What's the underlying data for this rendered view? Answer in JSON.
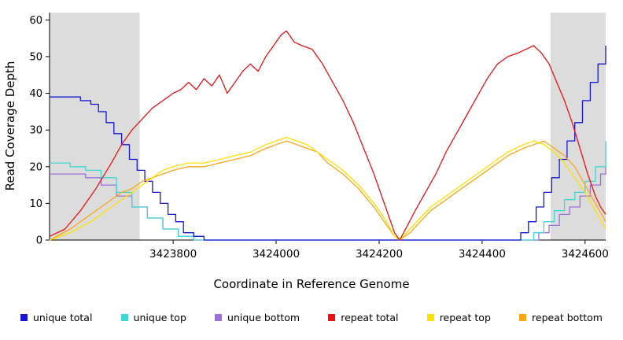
{
  "chart_data": {
    "type": "line",
    "title": "",
    "xlabel": "Coordinate in Reference Genome",
    "ylabel": "Read Coverage Depth",
    "xlim": [
      3423560,
      3424640
    ],
    "ylim": [
      0,
      62
    ],
    "xticks": [
      3423800,
      3424000,
      3424200,
      3424400,
      3424600
    ],
    "yticks": [
      0,
      10,
      20,
      30,
      40,
      50,
      60
    ],
    "grid": false,
    "legend_position": "bottom",
    "shaded_color": "#DCDCDC",
    "shaded_regions": [
      [
        3423560,
        3423735
      ],
      [
        3424533,
        3424640
      ]
    ],
    "series": [
      {
        "name": "unique total",
        "color": "#1515D6",
        "step": true,
        "x": [
          3423560,
          3423600,
          3423620,
          3423640,
          3423655,
          3423670,
          3423685,
          3423700,
          3423715,
          3423730,
          3423745,
          3423760,
          3423775,
          3423790,
          3423805,
          3423820,
          3423840,
          3423860,
          3424460,
          3424475,
          3424490,
          3424505,
          3424520,
          3424535,
          3424550,
          3424565,
          3424580,
          3424595,
          3424610,
          3424625,
          3424640
        ],
        "y": [
          39,
          39,
          38,
          37,
          35,
          32,
          29,
          26,
          22,
          19,
          16,
          13,
          10,
          7,
          5,
          2,
          1,
          0,
          0,
          2,
          5,
          9,
          13,
          17,
          22,
          27,
          32,
          38,
          43,
          48,
          53
        ]
      },
      {
        "name": "unique top",
        "color": "#3FD6D6",
        "step": true,
        "x": [
          3423560,
          3423600,
          3423630,
          3423660,
          3423690,
          3423720,
          3423750,
          3423780,
          3423810,
          3423840,
          3424480,
          3424500,
          3424520,
          3424540,
          3424560,
          3424580,
          3424600,
          3424620,
          3424640
        ],
        "y": [
          21,
          20,
          19,
          17,
          13,
          9,
          6,
          3,
          1,
          0,
          0,
          2,
          5,
          8,
          11,
          13,
          16,
          20,
          27
        ]
      },
      {
        "name": "unique bottom",
        "color": "#9B6FDB",
        "step": true,
        "x": [
          3423560,
          3423600,
          3423630,
          3423660,
          3423690,
          3423720,
          3423750,
          3423780,
          3423810,
          3423840,
          3424490,
          3424510,
          3424530,
          3424550,
          3424570,
          3424590,
          3424610,
          3424630,
          3424640
        ],
        "y": [
          18,
          18,
          17,
          15,
          12,
          9,
          6,
          3,
          1,
          0,
          0,
          2,
          4,
          7,
          9,
          12,
          15,
          18,
          20
        ]
      },
      {
        "name": "repeat total",
        "color": "#EE1111",
        "step": false,
        "x": [
          3423560,
          3423590,
          3423620,
          3423650,
          3423680,
          3423700,
          3423720,
          3423740,
          3423760,
          3423780,
          3423800,
          3423815,
          3423830,
          3423845,
          3423860,
          3423875,
          3423890,
          3423905,
          3423920,
          3423935,
          3423950,
          3423965,
          3423980,
          3423995,
          3424010,
          3424020,
          3424035,
          3424050,
          3424070,
          3424090,
          3424110,
          3424130,
          3424150,
          3424170,
          3424190,
          3424210,
          3424230,
          3424240,
          3424255,
          3424270,
          3424290,
          3424310,
          3424330,
          3424350,
          3424370,
          3424390,
          3424410,
          3424430,
          3424450,
          3424470,
          3424485,
          3424500,
          3424515,
          3424530,
          3424545,
          3424560,
          3424575,
          3424590,
          3424605,
          3424620,
          3424630,
          3424640
        ],
        "y": [
          1,
          3,
          8,
          14,
          21,
          26,
          30,
          33,
          36,
          38,
          40,
          41,
          43,
          41,
          44,
          42,
          45,
          40,
          43,
          46,
          48,
          46,
          50,
          53,
          56,
          57,
          54,
          53,
          52,
          48,
          43,
          38,
          32,
          25,
          18,
          10,
          2,
          0,
          4,
          8,
          13,
          18,
          24,
          29,
          34,
          39,
          44,
          48,
          50,
          51,
          52,
          53,
          51,
          48,
          43,
          38,
          32,
          25,
          18,
          12,
          9,
          7
        ]
      },
      {
        "name": "repeat top",
        "color": "#FFE100",
        "step": false,
        "x": [
          3423560,
          3423600,
          3423640,
          3423680,
          3423700,
          3423720,
          3423740,
          3423760,
          3423780,
          3423800,
          3423830,
          3423860,
          3423890,
          3423920,
          3423950,
          3423980,
          3424000,
          3424020,
          3424040,
          3424060,
          3424080,
          3424100,
          3424130,
          3424160,
          3424190,
          3424210,
          3424230,
          3424240,
          3424260,
          3424280,
          3424300,
          3424330,
          3424360,
          3424390,
          3424420,
          3424450,
          3424480,
          3424500,
          3424520,
          3424540,
          3424560,
          3424580,
          3424600,
          3424620,
          3424640
        ],
        "y": [
          0,
          2,
          5,
          9,
          11,
          13,
          15,
          17,
          19,
          20,
          21,
          21,
          22,
          23,
          24,
          26,
          27,
          28,
          27,
          26,
          24,
          22,
          19,
          15,
          10,
          6,
          1,
          0,
          3,
          6,
          9,
          12,
          15,
          18,
          21,
          24,
          26,
          27,
          26,
          24,
          21,
          17,
          13,
          8,
          3
        ]
      },
      {
        "name": "repeat bottom",
        "color": "#FFA515",
        "step": false,
        "x": [
          3423560,
          3423600,
          3423640,
          3423680,
          3423700,
          3423720,
          3423740,
          3423760,
          3423780,
          3423800,
          3423830,
          3423860,
          3423890,
          3423920,
          3423950,
          3423980,
          3424000,
          3424020,
          3424040,
          3424060,
          3424080,
          3424100,
          3424130,
          3424160,
          3424190,
          3424210,
          3424230,
          3424240,
          3424260,
          3424280,
          3424300,
          3424330,
          3424360,
          3424390,
          3424420,
          3424450,
          3424480,
          3424500,
          3424520,
          3424540,
          3424560,
          3424580,
          3424600,
          3424620,
          3424640
        ],
        "y": [
          0,
          3,
          7,
          11,
          13,
          14,
          16,
          17,
          18,
          19,
          20,
          20,
          21,
          22,
          23,
          25,
          26,
          27,
          26,
          25,
          24,
          21,
          18,
          14,
          9,
          5,
          1,
          0,
          2,
          5,
          8,
          11,
          14,
          17,
          20,
          23,
          25,
          26,
          27,
          25,
          23,
          20,
          15,
          10,
          5
        ]
      }
    ]
  }
}
